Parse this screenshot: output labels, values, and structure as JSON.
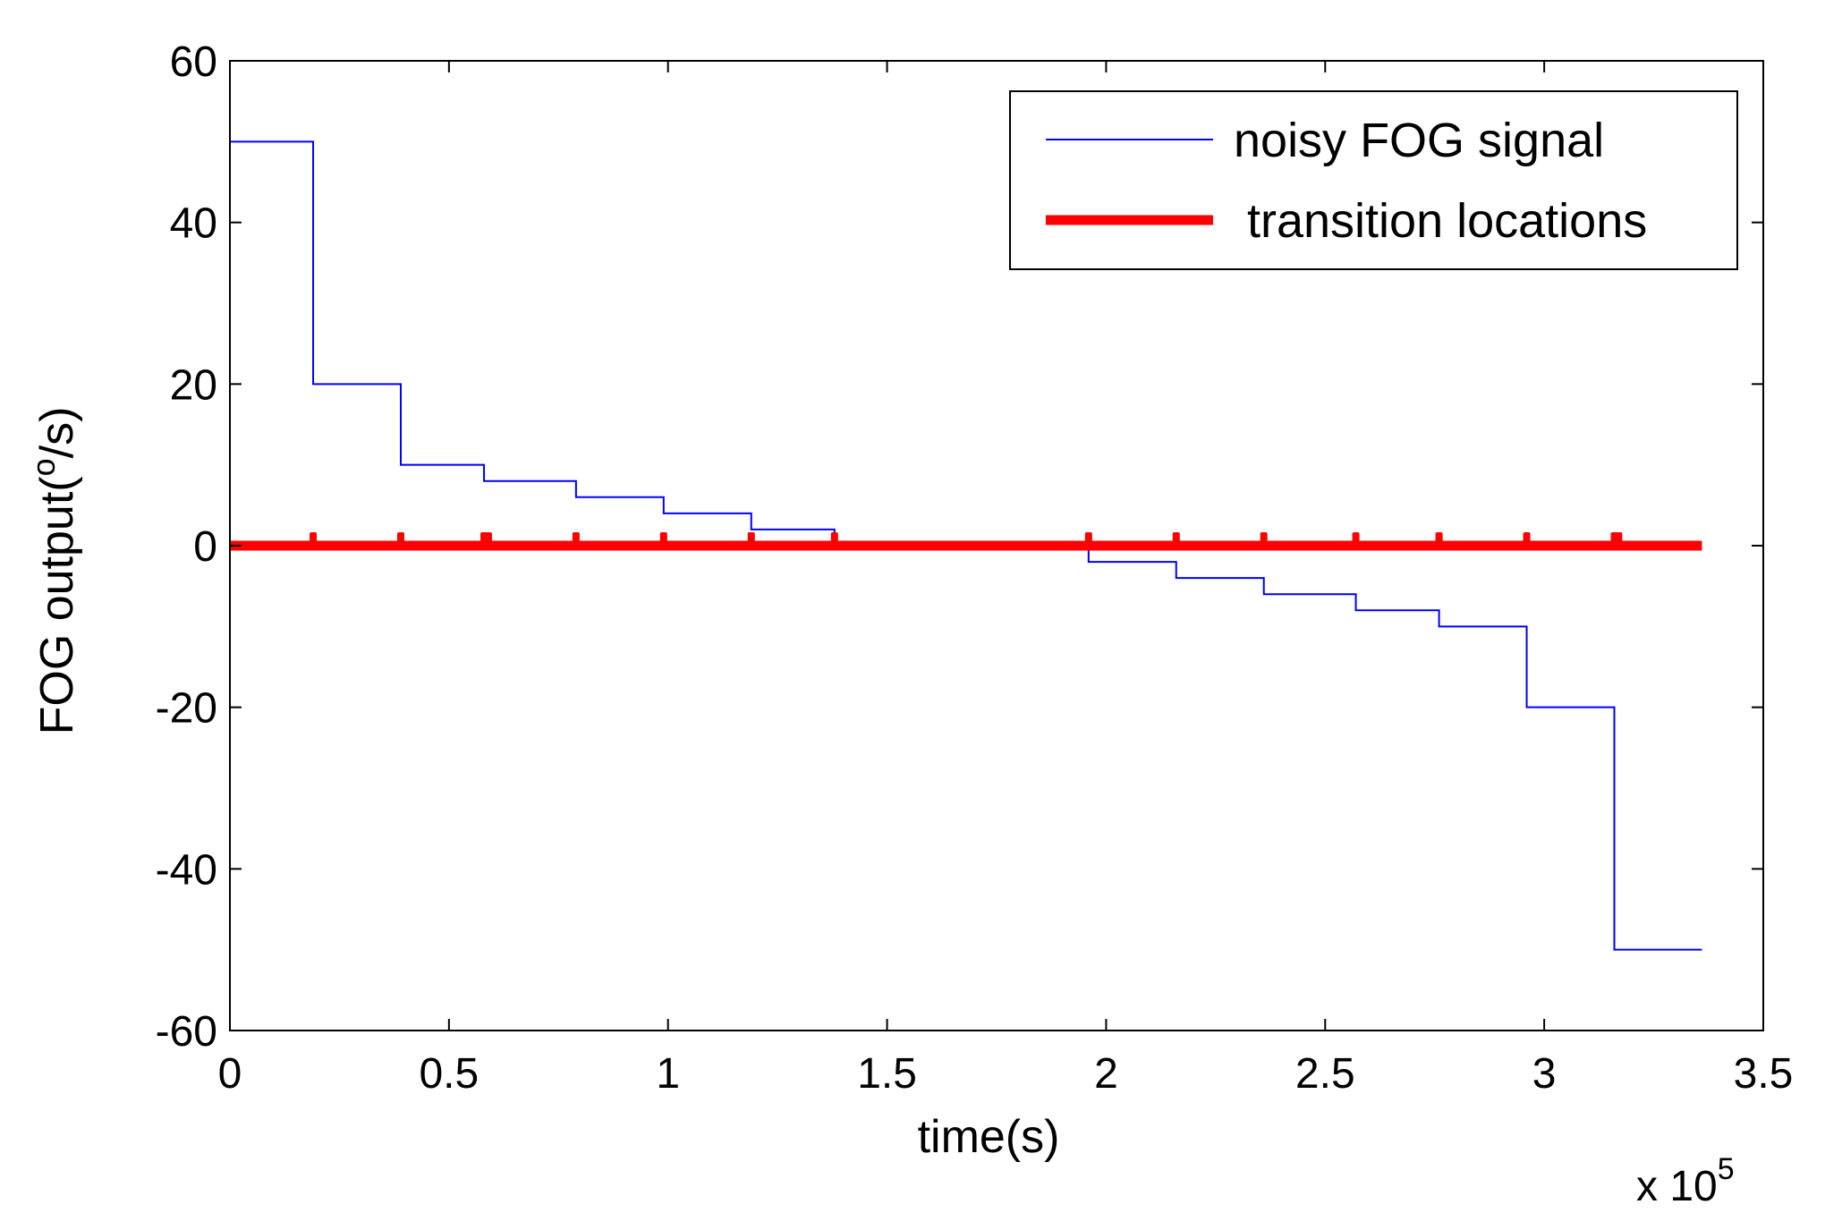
{
  "chart_data": {
    "type": "line",
    "xlabel": "time(s)",
    "ylabel_main": "FOG output(",
    "ylabel_sup": "o",
    "ylabel_tail": "/s)",
    "x_multiplier_base": "x 10",
    "x_multiplier_exp": "5",
    "xlim": [
      0,
      3.5
    ],
    "ylim": [
      -60,
      60
    ],
    "x_ticks": [
      0,
      0.5,
      1,
      1.5,
      2,
      2.5,
      3,
      3.5
    ],
    "x_tick_labels": [
      "0",
      "0.5",
      "1",
      "1.5",
      "2",
      "2.5",
      "3",
      "3.5"
    ],
    "y_ticks": [
      60,
      40,
      20,
      0,
      -20,
      -40,
      -60
    ],
    "y_tick_labels": [
      "60",
      "40",
      "20",
      "0",
      "-20",
      "-40",
      "-60"
    ],
    "grid": false,
    "legend_position": "top-right",
    "series": [
      {
        "name": "noisy FOG signal",
        "color": "#0000ff",
        "style": "step",
        "x": [
          0,
          0.19,
          0.39,
          0.58,
          0.79,
          0.99,
          1.19,
          1.38,
          1.96,
          2.16,
          2.36,
          2.57,
          2.76,
          2.96,
          3.16,
          3.36
        ],
        "y": [
          50,
          20,
          10,
          8,
          6,
          4,
          2,
          0,
          -2,
          -4,
          -6,
          -8,
          -10,
          -20,
          -50,
          -50
        ]
      },
      {
        "name": " transition locations",
        "color": "#ff0000",
        "style": "thick-line",
        "x": [
          0,
          3.36
        ],
        "y": [
          0,
          0
        ],
        "markers_x": [
          0.19,
          0.39,
          0.58,
          0.59,
          0.79,
          0.99,
          1.19,
          1.38,
          1.96,
          2.16,
          2.36,
          2.57,
          2.76,
          2.96,
          3.16,
          3.17
        ]
      }
    ]
  }
}
